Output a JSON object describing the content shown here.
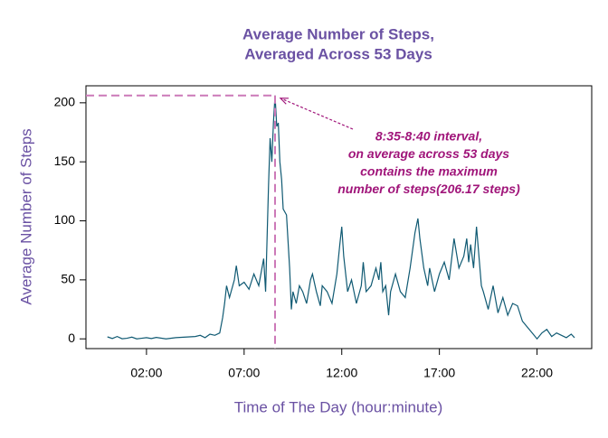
{
  "chart_data": {
    "type": "line",
    "title": "Average Number of Steps,",
    "subtitle": "Averaged Across 53 Days",
    "x_label": "Time of The Day (hour:minute)",
    "y_label": "Average Number of Steps",
    "annotation": [
      "8:35-8:40 interval,",
      "on average across 53 days",
      "contains the maximum",
      "number of steps(206.17 steps)"
    ],
    "x": [
      0,
      0.25,
      0.5,
      0.75,
      1,
      1.25,
      1.5,
      1.75,
      2,
      2.25,
      2.5,
      3,
      3.5,
      4,
      4.5,
      4.75,
      5,
      5.25,
      5.5,
      5.75,
      5.9,
      6,
      6.1,
      6.25,
      6.5,
      6.6,
      6.75,
      7,
      7.25,
      7.5,
      7.75,
      8,
      8.1,
      8.25,
      8.33,
      8.42,
      8.5,
      8.583,
      8.67,
      8.75,
      8.83,
      8.92,
      9,
      9.17,
      9.33,
      9.42,
      9.5,
      9.67,
      9.83,
      10,
      10.2,
      10.4,
      10.5,
      10.7,
      10.9,
      11,
      11.25,
      11.5,
      11.75,
      11.9,
      12,
      12.1,
      12.3,
      12.5,
      12.75,
      13,
      13.1,
      13.25,
      13.5,
      13.75,
      13.9,
      14,
      14.1,
      14.25,
      14.4,
      14.5,
      14.75,
      15,
      15.25,
      15.5,
      15.75,
      15.9,
      16,
      16.2,
      16.4,
      16.5,
      16.75,
      17,
      17.25,
      17.5,
      17.75,
      18,
      18.25,
      18.4,
      18.5,
      18.6,
      18.75,
      18.9,
      19,
      19.15,
      19.25,
      19.5,
      19.75,
      20,
      20.25,
      20.5,
      20.75,
      21,
      21.25,
      21.5,
      21.75,
      22,
      22.25,
      22.5,
      22.75,
      23,
      23.25,
      23.5,
      23.75,
      23.92
    ],
    "series": [
      {
        "name": "steps",
        "color": "#105a73",
        "values": [
          1.7,
          0.3,
          2,
          0.1,
          0.5,
          1.5,
          0,
          0.5,
          1,
          0.3,
          1.2,
          0,
          1,
          1.5,
          2,
          3,
          1,
          4,
          3,
          5,
          18,
          30,
          45,
          35,
          50,
          62,
          45,
          48,
          42,
          55,
          45,
          68,
          40,
          130,
          170,
          150,
          183,
          206.17,
          180,
          183,
          150,
          135,
          110,
          105,
          60,
          25,
          40,
          30,
          45,
          40,
          30,
          50,
          55,
          40,
          28,
          45,
          40,
          30,
          55,
          80,
          95,
          70,
          40,
          50,
          30,
          45,
          65,
          40,
          45,
          60,
          50,
          65,
          40,
          45,
          20,
          40,
          55,
          40,
          35,
          60,
          90,
          102,
          85,
          60,
          45,
          60,
          40,
          55,
          65,
          50,
          85,
          60,
          70,
          85,
          65,
          80,
          60,
          95,
          75,
          45,
          40,
          25,
          45,
          22,
          35,
          20,
          30,
          28,
          15,
          10,
          5,
          0,
          5,
          8,
          2,
          5,
          3,
          1,
          4,
          1
        ]
      }
    ],
    "xlim": [
      -1.1,
      24.8
    ],
    "ylim": [
      -8.25,
      214.42
    ],
    "xticks": [
      {
        "value": 2,
        "label": "02:00"
      },
      {
        "value": 7,
        "label": "07:00"
      },
      {
        "value": 12,
        "label": "12:00"
      },
      {
        "value": 17,
        "label": "17:00"
      },
      {
        "value": 22,
        "label": "22:00"
      }
    ],
    "yticks": [
      0,
      50,
      100,
      150,
      200
    ],
    "title_color": "#6a51a3",
    "annotation_color": "#a0157a",
    "reference_color": "#cc79b8"
  }
}
